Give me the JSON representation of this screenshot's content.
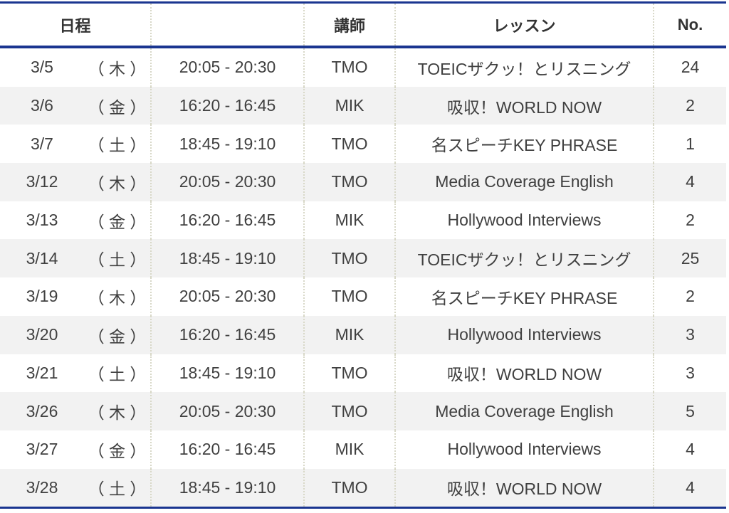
{
  "header": {
    "schedule": "日程",
    "time": "",
    "teacher": "講師",
    "lesson": "レッスン",
    "no": "No."
  },
  "rows": [
    {
      "date": "3/5",
      "day": "（ 木 ）",
      "time": "20:05 - 20:30",
      "teacher": "TMO",
      "lesson": "TOEICザクッ！とリスニング",
      "no": "24"
    },
    {
      "date": "3/6",
      "day": "（ 金 ）",
      "time": "16:20 - 16:45",
      "teacher": "MIK",
      "lesson": "吸収！WORLD NOW",
      "no": "2"
    },
    {
      "date": "3/7",
      "day": "（ 土 ）",
      "time": "18:45 - 19:10",
      "teacher": "TMO",
      "lesson": "名スピーチKEY PHRASE",
      "no": "1"
    },
    {
      "date": "3/12",
      "day": "（ 木 ）",
      "time": "20:05 - 20:30",
      "teacher": "TMO",
      "lesson": "Media Coverage English",
      "no": "4"
    },
    {
      "date": "3/13",
      "day": "（ 金 ）",
      "time": "16:20 - 16:45",
      "teacher": "MIK",
      "lesson": "Hollywood  Interviews",
      "no": "2"
    },
    {
      "date": "3/14",
      "day": "（ 土 ）",
      "time": "18:45 - 19:10",
      "teacher": "TMO",
      "lesson": "TOEICザクッ！とリスニング",
      "no": "25"
    },
    {
      "date": "3/19",
      "day": "（ 木 ）",
      "time": "20:05 - 20:30",
      "teacher": "TMO",
      "lesson": "名スピーチKEY PHRASE",
      "no": "2"
    },
    {
      "date": "3/20",
      "day": "（ 金 ）",
      "time": "16:20 - 16:45",
      "teacher": "MIK",
      "lesson": "Hollywood  Interviews",
      "no": "3"
    },
    {
      "date": "3/21",
      "day": "（ 土 ）",
      "time": "18:45 - 19:10",
      "teacher": "TMO",
      "lesson": "吸収！WORLD NOW",
      "no": "3"
    },
    {
      "date": "3/26",
      "day": "（ 木 ）",
      "time": "20:05 - 20:30",
      "teacher": "TMO",
      "lesson": "Media Coverage English",
      "no": "5"
    },
    {
      "date": "3/27",
      "day": "（ 金 ）",
      "time": "16:20 - 16:45",
      "teacher": "MIK",
      "lesson": "Hollywood  Interviews",
      "no": "4"
    },
    {
      "date": "3/28",
      "day": "（ 土 ）",
      "time": "18:45 - 19:10",
      "teacher": "TMO",
      "lesson": "吸収！WORLD NOW",
      "no": "4"
    }
  ]
}
